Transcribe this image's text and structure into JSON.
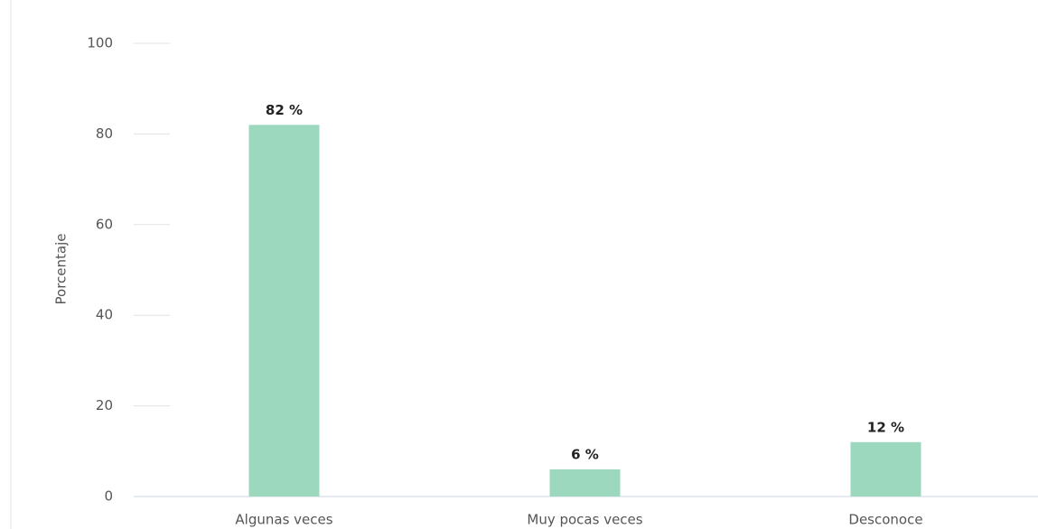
{
  "chart_data": {
    "type": "bar",
    "y_label": "Porcentaje",
    "categories": [
      "Algunas veces",
      "Muy pocas veces",
      "Desconoce"
    ],
    "values": [
      82,
      6,
      12
    ],
    "value_labels": [
      "82 %",
      "6 %",
      "12 %"
    ],
    "color": "#9bd8bd",
    "ylim": [
      0,
      100
    ],
    "yticks": [
      0,
      20,
      40,
      60,
      80,
      100
    ],
    "grid": true
  }
}
